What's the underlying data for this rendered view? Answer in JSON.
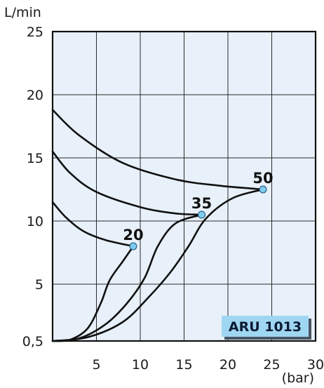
{
  "chart_data": {
    "type": "line",
    "ylabel": "L/min",
    "xlabel": "(bar)",
    "badge": "ARU 1013",
    "xlim": [
      0,
      30
    ],
    "ylim": [
      0.5,
      25
    ],
    "x_ticks": [
      5,
      10,
      15,
      20,
      25,
      30
    ],
    "y_ticks": [
      0.5,
      5,
      10,
      15,
      20,
      25
    ],
    "y_tick_labels": [
      "0,5",
      "5",
      "10",
      "15",
      "20",
      "25"
    ],
    "grid": true,
    "colors": {
      "background": "#e8f1fa",
      "grid": "#2a2a2a",
      "curve": "#111111",
      "marker": "#7ecbf0",
      "badge_fill": "#9fd6f2",
      "badge_shadow": "#4a5560"
    },
    "series": [
      {
        "name": "20",
        "rise": [
          [
            0,
            0.5
          ],
          [
            2,
            0.6
          ],
          [
            4,
            1.5
          ],
          [
            5.5,
            3.5
          ],
          [
            6.5,
            5.3
          ],
          [
            8,
            6.8
          ],
          [
            9.2,
            8
          ]
        ],
        "fall": [
          [
            0,
            11.5
          ],
          [
            1.5,
            10.3
          ],
          [
            3.5,
            9.2
          ],
          [
            6,
            8.5
          ],
          [
            9.2,
            8
          ]
        ],
        "point": [
          9.2,
          8
        ]
      },
      {
        "name": "35",
        "rise": [
          [
            0,
            0.5
          ],
          [
            3,
            0.7
          ],
          [
            6,
            1.8
          ],
          [
            8.5,
            3.5
          ],
          [
            10.5,
            5.5
          ],
          [
            12,
            8
          ],
          [
            14,
            9.8
          ],
          [
            17,
            10.5
          ]
        ],
        "fall": [
          [
            0,
            15.5
          ],
          [
            2,
            13.8
          ],
          [
            5,
            12.3
          ],
          [
            10,
            11.1
          ],
          [
            14,
            10.6
          ],
          [
            17,
            10.5
          ]
        ],
        "point": [
          17,
          10.5
        ]
      },
      {
        "name": "50",
        "rise": [
          [
            0,
            0.5
          ],
          [
            4,
            0.8
          ],
          [
            8,
            2
          ],
          [
            11,
            4
          ],
          [
            13.5,
            6
          ],
          [
            15.5,
            8
          ],
          [
            17.5,
            10.2
          ],
          [
            20.5,
            11.8
          ],
          [
            24,
            12.5
          ]
        ],
        "fall": [
          [
            0,
            18.8
          ],
          [
            3,
            16.8
          ],
          [
            8,
            14.6
          ],
          [
            14,
            13.3
          ],
          [
            19,
            12.8
          ],
          [
            24,
            12.5
          ]
        ],
        "point": [
          24,
          12.5
        ]
      }
    ]
  }
}
